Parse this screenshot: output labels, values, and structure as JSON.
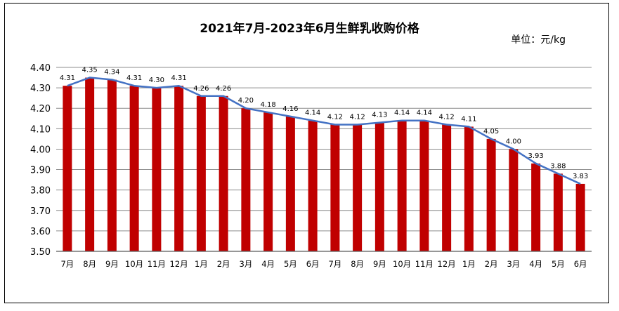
{
  "chart_data": {
    "type": "bar",
    "title": "2021年7月-2023年6月生鲜乳收购价格",
    "unit_label": "单位：元/kg",
    "categories": [
      "7月",
      "8月",
      "9月",
      "10月",
      "11月",
      "12月",
      "1月",
      "2月",
      "3月",
      "4月",
      "5月",
      "6月",
      "7月",
      "8月",
      "9月",
      "10月",
      "11月",
      "12月",
      "1月",
      "2月",
      "3月",
      "4月",
      "5月",
      "6月"
    ],
    "values": [
      4.31,
      4.35,
      4.34,
      4.31,
      4.3,
      4.31,
      4.26,
      4.26,
      4.2,
      4.18,
      4.16,
      4.14,
      4.12,
      4.12,
      4.13,
      4.14,
      4.14,
      4.12,
      4.11,
      4.05,
      4.0,
      3.93,
      3.88,
      3.83
    ],
    "value_labels": [
      "4.31",
      "4.35",
      "4.34",
      "4.31",
      "4.30",
      "4.31",
      "4.26",
      "4.26",
      "4.20",
      "4.18",
      "4.16",
      "4.14",
      "4.12",
      "4.12",
      "4.13",
      "4.14",
      "4.14",
      "4.12",
      "4.11",
      "4.05",
      "4.00",
      "3.93",
      "3.88",
      "3.83"
    ],
    "ylim": [
      3.5,
      4.4
    ],
    "yticks": [
      "3.50",
      "3.60",
      "3.70",
      "3.80",
      "3.90",
      "4.00",
      "4.10",
      "4.20",
      "4.30",
      "4.40"
    ],
    "grid": true,
    "bar_color": "#c00000",
    "line_color": "#4472c4",
    "overlay_line": true
  }
}
